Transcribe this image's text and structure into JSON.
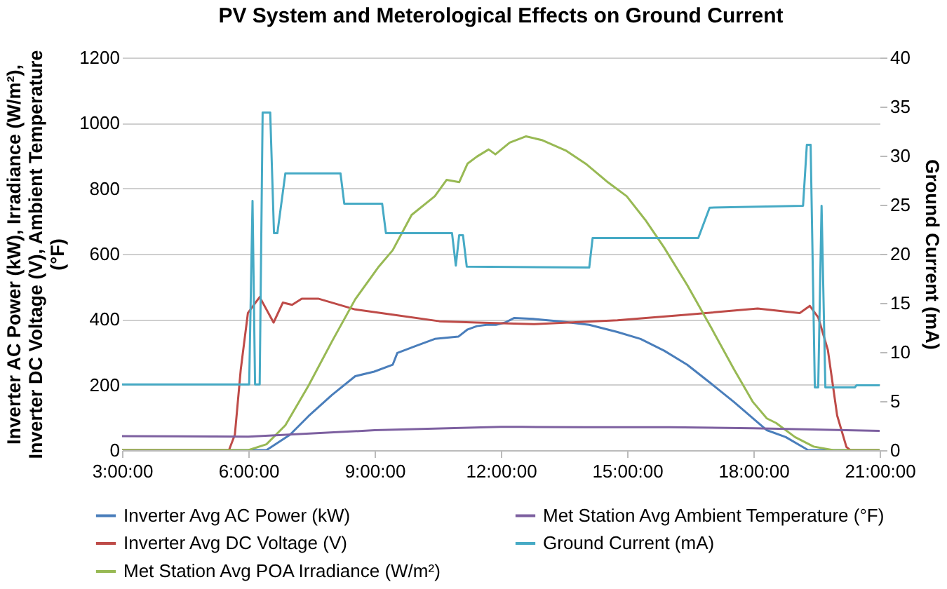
{
  "chart_data": {
    "type": "line",
    "title": "PV System and Meterological Effects on Ground Current",
    "ylabel": "Inverter AC Power (kW), Irradiance (W/m²), Inverter DC Voltage (V), Ambient Temperature (°F)",
    "y2label": "Ground Current (mA)",
    "xlim": [
      3,
      21
    ],
    "xticks": [
      {
        "value": 3,
        "label": "3:00:00"
      },
      {
        "value": 6,
        "label": "6:00:00"
      },
      {
        "value": 9,
        "label": "9:00:00"
      },
      {
        "value": 12,
        "label": "12:00:00"
      },
      {
        "value": 15,
        "label": "15:00:00"
      },
      {
        "value": 18,
        "label": "18:00:00"
      },
      {
        "value": 21,
        "label": "21:00:00"
      }
    ],
    "ylim": [
      0,
      1200
    ],
    "yticks": [
      0,
      200,
      400,
      600,
      800,
      1000,
      1200
    ],
    "y2lim": [
      0,
      40
    ],
    "y2ticks": [
      0,
      5,
      10,
      15,
      20,
      25,
      30,
      35,
      40
    ],
    "grid": "y",
    "legend": "bottom",
    "marker": "none",
    "line_style": "solid",
    "series": [
      {
        "name": "Inverter Avg AC Power (kW)",
        "color": "#4a7ebb",
        "x": [
          3,
          6.43,
          6.99,
          7.43,
          7.99,
          8.54,
          8.99,
          9.43,
          9.54,
          9.99,
          10.43,
          10.99,
          11.21,
          11.43,
          11.66,
          11.88,
          12.1,
          12.32,
          12.77,
          13.43,
          14.1,
          14.77,
          15.32,
          15.88,
          16.43,
          16.99,
          17.54,
          17.99,
          18.32,
          18.77,
          19.21,
          19.3,
          21
        ],
        "values": [
          0,
          0,
          47,
          104,
          169,
          226,
          240,
          261,
          297,
          319,
          340,
          347,
          369,
          379,
          383,
          383,
          390,
          404,
          401,
          393,
          383,
          361,
          340,
          304,
          261,
          204,
          147,
          97,
          61,
          40,
          7,
          0,
          0
        ]
      },
      {
        "name": "Inverter Avg DC Voltage (V)",
        "color": "#be4b48",
        "x": [
          3,
          5.54,
          5.68,
          5.82,
          5.99,
          6.27,
          6.6,
          6.82,
          7.04,
          7.27,
          7.66,
          8.54,
          9.43,
          10.54,
          11.43,
          12.77,
          14.77,
          16.43,
          18.1,
          19.1,
          19.34,
          19.54,
          19.77,
          19.99,
          20.21,
          20.3,
          21
        ],
        "values": [
          0,
          0,
          47,
          246,
          419,
          468,
          390,
          451,
          444,
          463,
          463,
          430,
          414,
          394,
          390,
          385,
          397,
          414,
          433,
          419,
          441,
          406,
          306,
          106,
          10,
          0,
          0
        ]
      },
      {
        "name": "Met Station Avg POA Irradiance (W/m²)",
        "color": "#98b954",
        "x": [
          3,
          6.0,
          6.43,
          6.88,
          7.43,
          7.99,
          8.54,
          9.1,
          9.43,
          9.88,
          10.43,
          10.71,
          11.01,
          11.21,
          11.43,
          11.71,
          11.87,
          12.21,
          12.6,
          12.99,
          13.54,
          14.04,
          14.54,
          14.99,
          15.43,
          15.88,
          16.43,
          16.99,
          17.54,
          17.99,
          18.32,
          18.54,
          18.99,
          19.43,
          19.9,
          21
        ],
        "values": [
          0,
          0,
          18,
          76,
          197,
          333,
          461,
          561,
          611,
          719,
          776,
          826,
          819,
          876,
          897,
          919,
          904,
          940,
          959,
          947,
          916,
          873,
          819,
          776,
          704,
          619,
          504,
          376,
          247,
          147,
          97,
          83,
          40,
          11,
          0,
          0
        ]
      },
      {
        "name": "Met Station Avg Ambient Temperature (°F)",
        "color": "#7d60a0",
        "x": [
          3,
          6,
          9,
          12,
          12.5,
          14,
          16,
          18,
          21
        ],
        "values": [
          43,
          41,
          61,
          71,
          71,
          70,
          70,
          67,
          59
        ]
      },
      {
        "name": "Ground Current (mA)",
        "color": "#46aac5",
        "axis": "y2",
        "x": [
          3,
          6.02,
          6.1,
          6.16,
          6.27,
          6.34,
          6.52,
          6.61,
          6.69,
          6.88,
          8.19,
          8.28,
          9.18,
          9.27,
          10.84,
          10.93,
          11.01,
          11.1,
          11.19,
          14.1,
          14.18,
          16.69,
          16.96,
          19.18,
          19.27,
          19.36,
          19.46,
          19.54,
          19.62,
          19.71,
          20.41,
          20.45,
          21
        ],
        "values": [
          6.7,
          6.7,
          25.4,
          6.7,
          6.7,
          34.4,
          34.4,
          22.1,
          22.1,
          28.2,
          28.2,
          25.1,
          25.1,
          22.1,
          22.1,
          18.8,
          21.9,
          21.9,
          18.7,
          18.6,
          21.6,
          21.6,
          24.7,
          24.9,
          31.1,
          31.1,
          6.4,
          6.4,
          24.9,
          6.4,
          6.4,
          6.6,
          6.6
        ]
      }
    ]
  }
}
